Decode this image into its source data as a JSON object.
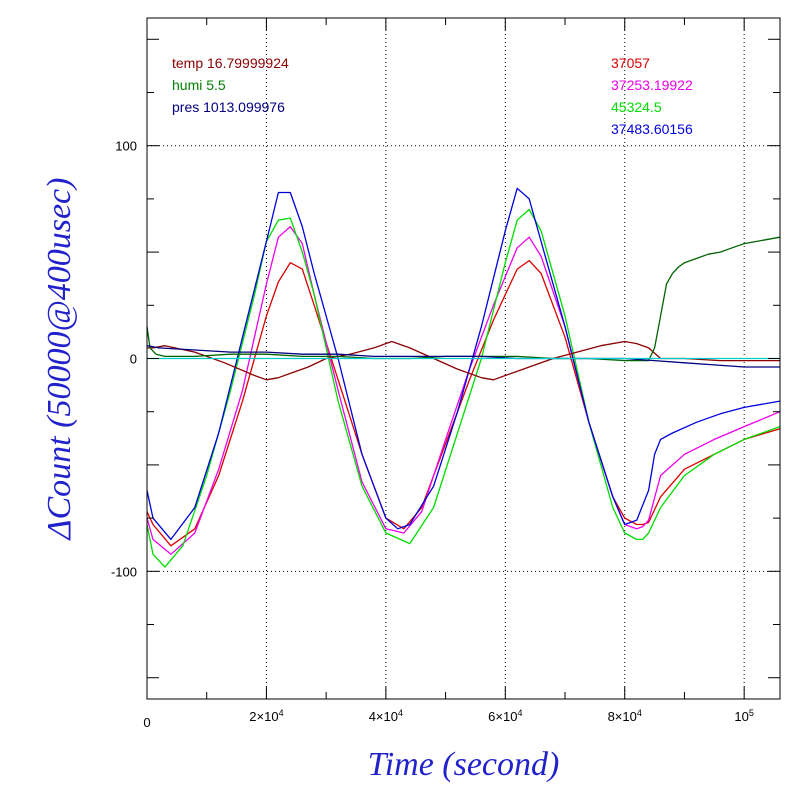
{
  "chart_data": {
    "type": "line",
    "title": "",
    "xlabel": "Time (second)",
    "ylabel": "ΔCount (50000@400usec)",
    "xlim": [
      0,
      106000
    ],
    "ylim": [
      -160,
      160
    ],
    "grid": true,
    "x_ticks": [
      {
        "value": 20000,
        "base": "2×10",
        "exp": "4"
      },
      {
        "value": 40000,
        "base": "4×10",
        "exp": "4"
      },
      {
        "value": 60000,
        "base": "6×10",
        "exp": "4"
      },
      {
        "value": 80000,
        "base": "8×10",
        "exp": "4"
      },
      {
        "value": 100000,
        "base": "10",
        "exp": "5"
      }
    ],
    "x_origin_label": "0",
    "y_ticks": [
      {
        "value": -100,
        "label": "-100"
      },
      {
        "value": 0,
        "label": "0"
      },
      {
        "value": 100,
        "label": "100"
      }
    ],
    "legend_left": [
      {
        "text": "temp 16.79999924",
        "color": "#8b0000"
      },
      {
        "text": "humi 5.5",
        "color": "#008000"
      },
      {
        "text": "pres 1013.099976",
        "color": "#000080"
      }
    ],
    "legend_right": [
      {
        "text": "37057",
        "color": "#dd0000"
      },
      {
        "text": "37253.19922",
        "color": "#ee00ee"
      },
      {
        "text": "45324.5",
        "color": "#00dd00"
      },
      {
        "text": "37483.60156",
        "color": "#0000dd"
      }
    ],
    "series": [
      {
        "color": "#dd0000",
        "x": [
          0,
          1000,
          4000,
          8000,
          12000,
          16000,
          20000,
          22000,
          24000,
          26000,
          28000,
          32000,
          36000,
          40000,
          43000,
          46000,
          50000,
          54000,
          58000,
          62000,
          64000,
          66000,
          70000,
          74000,
          78000,
          80000,
          82000,
          83000,
          84000,
          86000,
          90000,
          95000,
          100000,
          106000
        ],
        "y": [
          -72,
          -78,
          -88,
          -80,
          -55,
          -20,
          20,
          36,
          45,
          42,
          25,
          -10,
          -45,
          -75,
          -80,
          -70,
          -40,
          -10,
          18,
          42,
          46,
          40,
          10,
          -30,
          -65,
          -75,
          -78,
          -78,
          -77,
          -65,
          -52,
          -45,
          -38,
          -33
        ]
      },
      {
        "color": "#ee00ee",
        "x": [
          0,
          1000,
          4000,
          8000,
          12000,
          16000,
          20000,
          22000,
          24000,
          26000,
          28000,
          32000,
          36000,
          40000,
          43000,
          46000,
          50000,
          54000,
          58000,
          62000,
          64000,
          66000,
          70000,
          74000,
          78000,
          80000,
          82000,
          83000,
          84000,
          86000,
          90000,
          95000,
          100000,
          106000
        ],
        "y": [
          -75,
          -85,
          -92,
          -82,
          -52,
          -15,
          35,
          57,
          62,
          54,
          30,
          -15,
          -58,
          -80,
          -82,
          -72,
          -38,
          -5,
          25,
          52,
          57,
          48,
          15,
          -30,
          -65,
          -78,
          -80,
          -79,
          -76,
          -55,
          -45,
          -38,
          -32,
          -25
        ]
      },
      {
        "color": "#00dd00",
        "x": [
          0,
          1000,
          3000,
          6000,
          10000,
          14000,
          18000,
          20000,
          22000,
          24000,
          26000,
          28000,
          32000,
          36000,
          40000,
          44000,
          48000,
          52000,
          56000,
          60000,
          62000,
          64000,
          66000,
          70000,
          74000,
          78000,
          80000,
          82000,
          83000,
          84000,
          86000,
          90000,
          95000,
          100000,
          106000
        ],
        "y": [
          -78,
          -92,
          -98,
          -88,
          -55,
          -15,
          30,
          55,
          65,
          66,
          50,
          30,
          -20,
          -60,
          -82,
          -87,
          -70,
          -35,
          0,
          45,
          65,
          70,
          60,
          20,
          -30,
          -70,
          -82,
          -85,
          -85,
          -82,
          -70,
          -55,
          -45,
          -38,
          -32
        ]
      },
      {
        "color": "#0000dd",
        "x": [
          0,
          1000,
          4000,
          8000,
          12000,
          16000,
          20000,
          22000,
          24000,
          26000,
          28000,
          32000,
          36000,
          40000,
          42000,
          44000,
          48000,
          52000,
          56000,
          60000,
          62000,
          64000,
          66000,
          70000,
          74000,
          78000,
          80000,
          82000,
          84000,
          85000,
          86000,
          88000,
          92000,
          96000,
          100000,
          106000
        ],
        "y": [
          -62,
          -75,
          -85,
          -70,
          -35,
          10,
          55,
          78,
          78,
          62,
          40,
          0,
          -45,
          -75,
          -80,
          -78,
          -60,
          -25,
          15,
          60,
          80,
          75,
          55,
          15,
          -30,
          -65,
          -78,
          -76,
          -62,
          -45,
          -38,
          -35,
          -30,
          -26,
          -23,
          -20
        ]
      },
      {
        "color": "#8b0000",
        "x": [
          0,
          1000,
          3000,
          8000,
          13000,
          18000,
          20000,
          22000,
          24000,
          27000,
          30000,
          34000,
          38000,
          41000,
          44000,
          48000,
          52000,
          56000,
          58000,
          60000,
          64000,
          68000,
          72000,
          76000,
          80000,
          82000,
          84000,
          86000,
          90000,
          96000,
          100000,
          106000
        ],
        "y": [
          5,
          5,
          6,
          3,
          -2,
          -8,
          -10,
          -9,
          -7,
          -4,
          0,
          2,
          5,
          8,
          5,
          0,
          -5,
          -9,
          -10,
          -8,
          -4,
          0,
          3,
          6,
          8,
          7,
          5,
          0,
          0,
          -1,
          -1,
          -1
        ]
      },
      {
        "color": "#006400",
        "x": [
          0,
          500,
          1500,
          3000,
          8000,
          14000,
          20000,
          26000,
          32000,
          38000,
          44000,
          50000,
          56000,
          62000,
          68000,
          74000,
          80000,
          84000,
          85000,
          86000,
          87000,
          88000,
          89000,
          90000,
          92000,
          94000,
          96000,
          98000,
          100000,
          102000,
          104000,
          106000
        ],
        "y": [
          15,
          5,
          2,
          1,
          1,
          2,
          2,
          1,
          1,
          0,
          0,
          1,
          1,
          1,
          0,
          0,
          -1,
          -1,
          5,
          20,
          35,
          40,
          43,
          45,
          47,
          49,
          50,
          52,
          54,
          55,
          56,
          57
        ]
      },
      {
        "color": "#000080",
        "x": [
          0,
          2000,
          8000,
          14000,
          20000,
          26000,
          32000,
          38000,
          44000,
          50000,
          56000,
          62000,
          68000,
          74000,
          80000,
          85000,
          90000,
          95000,
          100000,
          106000
        ],
        "y": [
          6,
          5,
          4,
          3,
          3,
          2,
          2,
          1,
          1,
          1,
          1,
          0,
          0,
          0,
          0,
          -1,
          -2,
          -3,
          -4,
          -4
        ]
      },
      {
        "color": "#00cccc",
        "x": [
          0,
          10000,
          20000,
          30000,
          40000,
          50000,
          60000,
          70000,
          80000,
          90000,
          100000,
          106000
        ],
        "y": [
          0,
          0,
          0,
          0,
          0,
          0,
          0,
          0,
          0,
          0,
          0,
          0
        ]
      }
    ]
  }
}
